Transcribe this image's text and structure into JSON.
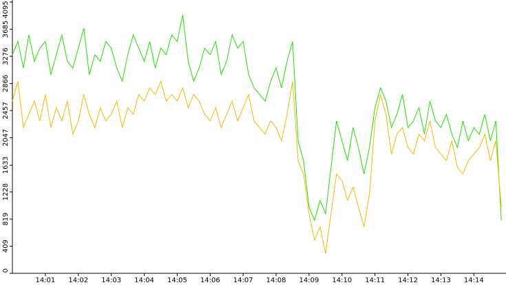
{
  "chart_data": {
    "type": "line",
    "categories": [
      null,
      null,
      null,
      null,
      null,
      null,
      "14:01",
      null,
      null,
      null,
      null,
      null,
      "14:02",
      null,
      null,
      null,
      null,
      null,
      "14:03",
      null,
      null,
      null,
      null,
      null,
      "14:04",
      null,
      null,
      null,
      null,
      null,
      "14:05",
      null,
      null,
      null,
      null,
      null,
      "14:06",
      null,
      null,
      null,
      null,
      null,
      "14:07",
      null,
      null,
      null,
      null,
      null,
      "14:08",
      null,
      null,
      null,
      null,
      null,
      "14:09",
      null,
      null,
      null,
      null,
      null,
      "14:10",
      null,
      null,
      null,
      null,
      null,
      "14:11",
      null,
      null,
      null,
      null,
      null,
      "14:12",
      null,
      null,
      null,
      null,
      null,
      "14:13",
      null,
      null,
      null,
      null,
      null,
      "14:14",
      null,
      null,
      null,
      null,
      null
    ],
    "series": [
      {
        "color": "#22dd00",
        "values": [
          3300,
          3500,
          3100,
          3600,
          3200,
          3400,
          3500,
          3000,
          3300,
          3600,
          3200,
          3100,
          3400,
          3700,
          3000,
          3300,
          3200,
          3500,
          3400,
          3100,
          2900,
          3300,
          3600,
          3400,
          3200,
          3500,
          3100,
          3400,
          3300,
          3600,
          3500,
          3900,
          3200,
          2900,
          3100,
          3400,
          3300,
          3500,
          3000,
          3200,
          3600,
          3400,
          3500,
          3000,
          2800,
          2700,
          2600,
          2900,
          3100,
          2800,
          3200,
          3500,
          2000,
          1700,
          1000,
          800,
          1100,
          900,
          1600,
          2300,
          2000,
          1700,
          2200,
          1900,
          1500,
          1900,
          2500,
          2800,
          2600,
          2200,
          2400,
          2700,
          2200,
          2300,
          2500,
          2100,
          2600,
          2300,
          2200,
          2400,
          2100,
          1900,
          2300,
          2000,
          2200,
          2100,
          2400,
          2000,
          2300,
          800
        ]
      },
      {
        "color": "#f5b800",
        "values": [
          2600,
          2900,
          2200,
          2400,
          2600,
          2300,
          2700,
          2200,
          2500,
          2300,
          2600,
          2100,
          2300,
          2700,
          2400,
          2200,
          2500,
          2300,
          2400,
          2600,
          2200,
          2500,
          2400,
          2700,
          2600,
          2800,
          2700,
          2900,
          2600,
          2700,
          2600,
          2800,
          2500,
          2700,
          2600,
          2400,
          2300,
          2500,
          2200,
          2400,
          2600,
          2300,
          2500,
          2700,
          2300,
          2200,
          2100,
          2300,
          2200,
          2000,
          2400,
          2900,
          1700,
          1500,
          900,
          500,
          700,
          300,
          900,
          1500,
          1400,
          1100,
          1300,
          1000,
          700,
          1200,
          2300,
          2700,
          2400,
          1800,
          2100,
          2200,
          1900,
          1800,
          2100,
          2000,
          2300,
          1900,
          1800,
          1700,
          2000,
          1600,
          1500,
          1700,
          1800,
          1900,
          2100,
          1700,
          2000,
          1000
        ]
      }
    ],
    "ylim": [
      0,
      4095
    ],
    "yticks": [
      0,
      409,
      819,
      1228,
      1633,
      2047,
      2457,
      2866,
      3276,
      3685,
      4095
    ]
  }
}
